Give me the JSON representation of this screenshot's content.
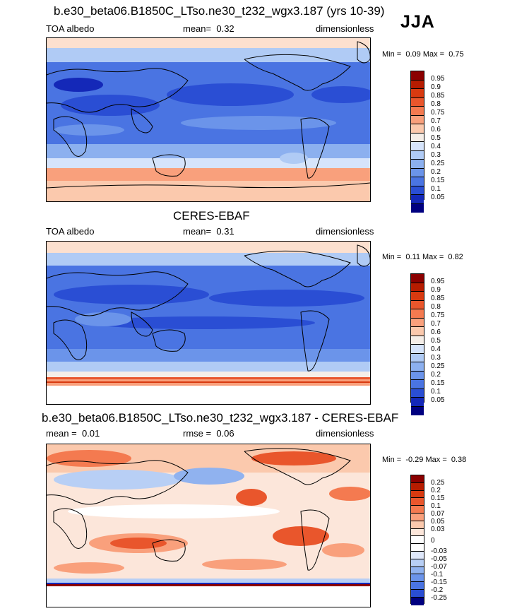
{
  "season": "JJA",
  "panels": [
    {
      "title": "b.e30_beta06.B1850C_LTso.ne30_t232_wgx3.187 (yrs 10-39)",
      "left_label": "TOA albedo",
      "stat_label": "mean=",
      "stat_value": "0.32",
      "units": "dimensionless",
      "min_label": "Min =",
      "min_value": "0.09",
      "max_label": "Max =",
      "max_value": "0.75",
      "colorbar_labels": [
        "0.95",
        "0.9",
        "0.85",
        "0.8",
        "0.75",
        "0.7",
        "0.6",
        "0.5",
        "0.4",
        "0.3",
        "0.25",
        "0.2",
        "0.15",
        "0.1",
        "0.05"
      ]
    },
    {
      "title": "CERES-EBAF",
      "left_label": "TOA albedo",
      "stat_label": "mean=",
      "stat_value": "0.31",
      "units": "dimensionless",
      "min_label": "Min =",
      "min_value": "0.11",
      "max_label": "Max =",
      "max_value": "0.82",
      "colorbar_labels": [
        "0.95",
        "0.9",
        "0.85",
        "0.8",
        "0.75",
        "0.7",
        "0.6",
        "0.5",
        "0.4",
        "0.3",
        "0.25",
        "0.2",
        "0.15",
        "0.1",
        "0.05"
      ]
    },
    {
      "title": "b.e30_beta06.B1850C_LTso.ne30_t232_wgx3.187 - CERES-EBAF",
      "left_label": "mean =",
      "left_value": "0.01",
      "stat_label": "rmse =",
      "stat_value": "0.06",
      "units": "dimensionless",
      "min_label": "Min =",
      "min_value": "-0.29",
      "max_label": "Max =",
      "max_value": "0.38",
      "colorbar_labels": [
        "0.25",
        "0.2",
        "0.15",
        "0.1",
        "0.07",
        "0.05",
        "0.03",
        "0",
        "-0.03",
        "-0.05",
        "-0.07",
        "-0.1",
        "-0.15",
        "-0.2",
        "-0.25"
      ]
    }
  ],
  "colors": {
    "abs_scale": [
      "#8b0000",
      "#b71c00",
      "#d83a10",
      "#e9562c",
      "#f47a50",
      "#f9a07c",
      "#fbc9ad",
      "#f5eee8",
      "#d6e4fb",
      "#b0cbf5",
      "#8cb0ef",
      "#6b94ea",
      "#4a74e2",
      "#2a4ed4",
      "#1428b8",
      "#000080"
    ],
    "diff_scale": [
      "#8b0000",
      "#b71c00",
      "#d83a10",
      "#e9562c",
      "#f47a50",
      "#f9a07c",
      "#fbc9ad",
      "#fce6da",
      "#ffffff",
      "#ffffff",
      "#dfe8fb",
      "#b8cff5",
      "#90b2ef",
      "#6b94ea",
      "#4a74e2",
      "#2a4ed4",
      "#000080"
    ]
  }
}
